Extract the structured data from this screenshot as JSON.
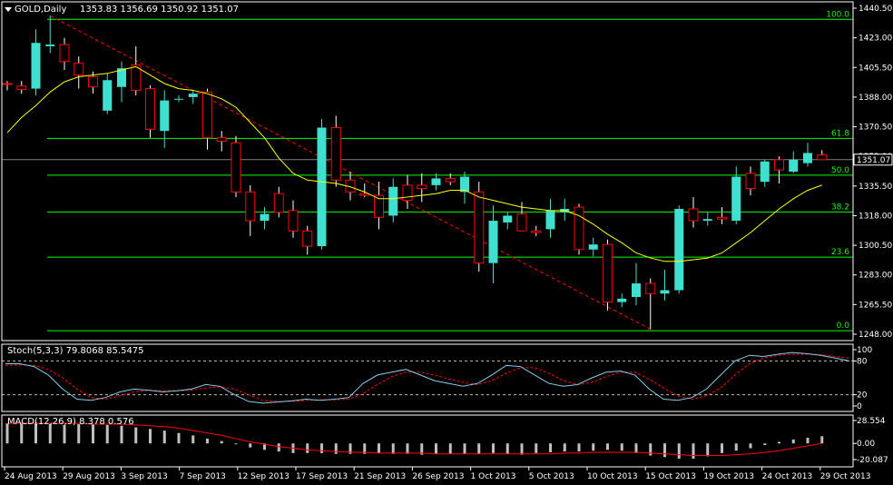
{
  "header": {
    "symbol": "GOLD,Daily",
    "ohlc": "1353.83 1356.69 1350.92 1351.07"
  },
  "stoch": {
    "label": "Stoch(5,3,3) 79.8068 85.5475",
    "scale_labels": [
      "100",
      "80",
      "20",
      "0"
    ],
    "main_color": "#87ceeb",
    "signal_color": "#ff0000",
    "main": [
      75,
      75,
      70,
      55,
      30,
      12,
      10,
      15,
      25,
      30,
      28,
      25,
      27,
      30,
      38,
      35,
      20,
      8,
      5,
      7,
      9,
      12,
      10,
      12,
      15,
      40,
      55,
      60,
      65,
      55,
      45,
      40,
      35,
      40,
      55,
      72,
      70,
      55,
      40,
      35,
      38,
      50,
      60,
      62,
      55,
      30,
      12,
      10,
      15,
      30,
      55,
      80,
      90,
      88,
      92,
      95,
      93,
      90,
      85,
      80
    ],
    "signal": [
      72,
      73,
      72,
      65,
      50,
      30,
      15,
      12,
      18,
      25,
      28,
      27,
      27,
      28,
      32,
      34,
      30,
      20,
      10,
      8,
      8,
      10,
      11,
      11,
      12,
      22,
      38,
      52,
      60,
      60,
      55,
      48,
      42,
      38,
      45,
      58,
      68,
      68,
      58,
      45,
      38,
      42,
      52,
      60,
      60,
      48,
      32,
      18,
      12,
      18,
      32,
      55,
      75,
      85,
      90,
      92,
      92,
      91,
      88,
      85
    ]
  },
  "macd": {
    "label": "MACD(12,26,9) 8.378 0.576",
    "scale_labels": [
      "28.554",
      "0.00",
      "-20.087"
    ],
    "hist": [
      25,
      25,
      26,
      24,
      23,
      24,
      24,
      23,
      22,
      20,
      18,
      16,
      13,
      10,
      6,
      3,
      -1,
      -5,
      -8,
      -10,
      -12,
      -12,
      -12,
      -13,
      -13,
      -13,
      -12,
      -13,
      -13,
      -14,
      -13,
      -13,
      -13,
      -13,
      -12,
      -13,
      -14,
      -12,
      -11,
      -10,
      -10,
      -9,
      -8,
      -9,
      -12,
      -15,
      -17,
      -19,
      -19,
      -16,
      -12,
      -9,
      -6,
      -2,
      2,
      5,
      7,
      9
    ],
    "signal": [
      25,
      25,
      25,
      25,
      25,
      25,
      24,
      24,
      24,
      23,
      22,
      21,
      19,
      16,
      13,
      10,
      6,
      2,
      -1,
      -4,
      -6,
      -8,
      -9,
      -10,
      -11,
      -11,
      -12,
      -12,
      -12,
      -12,
      -13,
      -13,
      -13,
      -13,
      -13,
      -13,
      -13,
      -13,
      -13,
      -12,
      -12,
      -11,
      -11,
      -11,
      -11,
      -12,
      -13,
      -14,
      -15,
      -15,
      -15,
      -14,
      -13,
      -11,
      -9,
      -6,
      -3,
      0
    ]
  },
  "price_labels": [
    "1440.50",
    "1423.00",
    "1405.50",
    "1388.00",
    "1370.50",
    "1353.00",
    "1335.50",
    "1318.00",
    "1300.50",
    "1283.00",
    "1265.50",
    "1248.00"
  ],
  "current_price": "1351.07",
  "date_labels": [
    "24 Aug 2013",
    "29 Aug 2013",
    "3 Sep 2013",
    "7 Sep 2013",
    "12 Sep 2013",
    "17 Sep 2013",
    "21 Sep 2013",
    "26 Sep 2013",
    "1 Oct 2013",
    "5 Oct 2013",
    "10 Oct 2013",
    "15 Oct 2013",
    "19 Oct 2013",
    "24 Oct 2013",
    "29 Oct 2013"
  ],
  "fib_levels": [
    {
      "label": "100.0",
      "price": 1433.9
    },
    {
      "label": "61.8",
      "price": 1363.6
    },
    {
      "label": "50.0",
      "price": 1341.9
    },
    {
      "label": "38.2",
      "price": 1320.2
    },
    {
      "label": "23.6",
      "price": 1293.5
    },
    {
      "label": "0.0",
      "price": 1250.1
    }
  ],
  "colors": {
    "bull": "#40e0d0",
    "bear": "#ff0000",
    "ma": "#ffff00",
    "fib": "#00ff00",
    "trend": "#ff0000",
    "grid_text": "#ffffff"
  },
  "chart_data": {
    "type": "candlestick",
    "symbol": "GOLD",
    "timeframe": "Daily",
    "ylim": [
      1248.0,
      1444.0
    ],
    "candles": [
      {
        "o": 1396.0,
        "h": 1397.5,
        "l": 1392.0,
        "c": 1395.8
      },
      {
        "o": 1394.5,
        "h": 1397.5,
        "l": 1390.0,
        "c": 1392.5
      },
      {
        "o": 1393.0,
        "h": 1428.0,
        "l": 1389.0,
        "c": 1420.0
      },
      {
        "o": 1418.0,
        "h": 1436.0,
        "l": 1414.0,
        "c": 1419.0
      },
      {
        "o": 1419.0,
        "h": 1423.0,
        "l": 1404.0,
        "c": 1409.0
      },
      {
        "o": 1408.0,
        "h": 1412.0,
        "l": 1393.0,
        "c": 1401.0
      },
      {
        "o": 1400.0,
        "h": 1403.0,
        "l": 1390.0,
        "c": 1394.0
      },
      {
        "o": 1380.0,
        "h": 1402.0,
        "l": 1378.0,
        "c": 1398.0
      },
      {
        "o": 1394.0,
        "h": 1409.0,
        "l": 1385.0,
        "c": 1405.0
      },
      {
        "o": 1407.0,
        "h": 1418.0,
        "l": 1389.0,
        "c": 1392.0
      },
      {
        "o": 1393.0,
        "h": 1395.0,
        "l": 1364.0,
        "c": 1369.0
      },
      {
        "o": 1368.0,
        "h": 1392.0,
        "l": 1358.0,
        "c": 1386.0
      },
      {
        "o": 1387.0,
        "h": 1389.0,
        "l": 1385.0,
        "c": 1387.0
      },
      {
        "o": 1388.0,
        "h": 1392.0,
        "l": 1384.0,
        "c": 1390.0
      },
      {
        "o": 1391.0,
        "h": 1393.0,
        "l": 1357.0,
        "c": 1364.0
      },
      {
        "o": 1364.0,
        "h": 1368.0,
        "l": 1356.0,
        "c": 1362.0
      },
      {
        "o": 1361.0,
        "h": 1365.0,
        "l": 1329.0,
        "c": 1332.0
      },
      {
        "o": 1332.0,
        "h": 1336.0,
        "l": 1306.0,
        "c": 1315.0
      },
      {
        "o": 1315.0,
        "h": 1323.0,
        "l": 1310.0,
        "c": 1319.0
      },
      {
        "o": 1331.0,
        "h": 1335.0,
        "l": 1317.0,
        "c": 1320.0
      },
      {
        "o": 1321.0,
        "h": 1327.0,
        "l": 1305.0,
        "c": 1309.0
      },
      {
        "o": 1309.0,
        "h": 1312.0,
        "l": 1295.0,
        "c": 1300.0
      },
      {
        "o": 1300.0,
        "h": 1375.0,
        "l": 1298.0,
        "c": 1370.0
      },
      {
        "o": 1370.0,
        "h": 1377.0,
        "l": 1335.0,
        "c": 1339.0
      },
      {
        "o": 1339.0,
        "h": 1344.0,
        "l": 1327.0,
        "c": 1332.0
      },
      {
        "o": 1331.0,
        "h": 1337.0,
        "l": 1329.0,
        "c": 1330.0
      },
      {
        "o": 1330.0,
        "h": 1338.0,
        "l": 1310.0,
        "c": 1317.0
      },
      {
        "o": 1318.0,
        "h": 1340.0,
        "l": 1314.0,
        "c": 1335.0
      },
      {
        "o": 1336.0,
        "h": 1342.0,
        "l": 1322.0,
        "c": 1327.0
      },
      {
        "o": 1336.0,
        "h": 1343.0,
        "l": 1326.0,
        "c": 1334.0
      },
      {
        "o": 1336.0,
        "h": 1343.0,
        "l": 1333.0,
        "c": 1340.0
      },
      {
        "o": 1340.0,
        "h": 1343.0,
        "l": 1336.0,
        "c": 1338.0
      },
      {
        "o": 1332.0,
        "h": 1344.0,
        "l": 1325.0,
        "c": 1341.0
      },
      {
        "o": 1332.0,
        "h": 1338.0,
        "l": 1285.0,
        "c": 1290.0
      },
      {
        "o": 1290.0,
        "h": 1324.0,
        "l": 1278.0,
        "c": 1315.0
      },
      {
        "o": 1314.0,
        "h": 1320.0,
        "l": 1310.0,
        "c": 1318.0
      },
      {
        "o": 1319.0,
        "h": 1326.0,
        "l": 1310.0,
        "c": 1309.0
      },
      {
        "o": 1309.0,
        "h": 1312.0,
        "l": 1306.0,
        "c": 1308.0
      },
      {
        "o": 1310.0,
        "h": 1328.0,
        "l": 1305.0,
        "c": 1321.0
      },
      {
        "o": 1320.0,
        "h": 1328.0,
        "l": 1315.0,
        "c": 1322.0
      },
      {
        "o": 1323.0,
        "h": 1325.0,
        "l": 1295.0,
        "c": 1298.0
      },
      {
        "o": 1298.0,
        "h": 1305.0,
        "l": 1294.0,
        "c": 1301.0
      },
      {
        "o": 1301.0,
        "h": 1304.0,
        "l": 1262.0,
        "c": 1267.0
      },
      {
        "o": 1267.0,
        "h": 1272.0,
        "l": 1264.0,
        "c": 1269.0
      },
      {
        "o": 1270.0,
        "h": 1290.0,
        "l": 1265.0,
        "c": 1278.0
      },
      {
        "o": 1278.0,
        "h": 1281.0,
        "l": 1251.0,
        "c": 1272.0
      },
      {
        "o": 1272.0,
        "h": 1286.0,
        "l": 1268.0,
        "c": 1274.0
      },
      {
        "o": 1274.0,
        "h": 1324.0,
        "l": 1272.0,
        "c": 1322.0
      },
      {
        "o": 1322.0,
        "h": 1329.0,
        "l": 1311.0,
        "c": 1315.0
      },
      {
        "o": 1315.0,
        "h": 1320.0,
        "l": 1312.0,
        "c": 1316.0
      },
      {
        "o": 1317.0,
        "h": 1323.0,
        "l": 1313.0,
        "c": 1316.0
      },
      {
        "o": 1315.0,
        "h": 1347.0,
        "l": 1313.0,
        "c": 1341.0
      },
      {
        "o": 1343.0,
        "h": 1347.0,
        "l": 1330.0,
        "c": 1334.0
      },
      {
        "o": 1338.0,
        "h": 1351.0,
        "l": 1335.0,
        "c": 1350.0
      },
      {
        "o": 1351.0,
        "h": 1353.0,
        "l": 1337.0,
        "c": 1345.0
      },
      {
        "o": 1344.0,
        "h": 1356.0,
        "l": 1343.0,
        "c": 1351.0
      },
      {
        "o": 1349.0,
        "h": 1361.0,
        "l": 1347.0,
        "c": 1355.0
      },
      {
        "o": 1353.83,
        "h": 1356.69,
        "l": 1350.92,
        "c": 1351.07
      }
    ],
    "moving_average": [
      1367,
      1376,
      1383,
      1391,
      1397,
      1400,
      1401,
      1402,
      1404,
      1406,
      1401,
      1396,
      1393,
      1392,
      1390,
      1387,
      1382,
      1373,
      1364,
      1352,
      1343,
      1339,
      1338,
      1337,
      1335,
      1332,
      1328,
      1328,
      1329,
      1330,
      1331,
      1333,
      1333,
      1329,
      1327,
      1325,
      1323,
      1322,
      1321,
      1321,
      1318,
      1313,
      1307,
      1302,
      1296,
      1293,
      1291,
      1291,
      1292,
      1293,
      1296,
      1302,
      1308,
      1315,
      1322,
      1328,
      1333,
      1336
    ],
    "fib_levels": {
      "100.0": 1433.9,
      "61.8": 1363.6,
      "50.0": 1341.9,
      "38.2": 1320.2,
      "23.6": 1293.5,
      "0.0": 1250.1
    },
    "stoch_scale": [
      0,
      100
    ],
    "macd_scale": [
      -20.087,
      28.554
    ]
  }
}
